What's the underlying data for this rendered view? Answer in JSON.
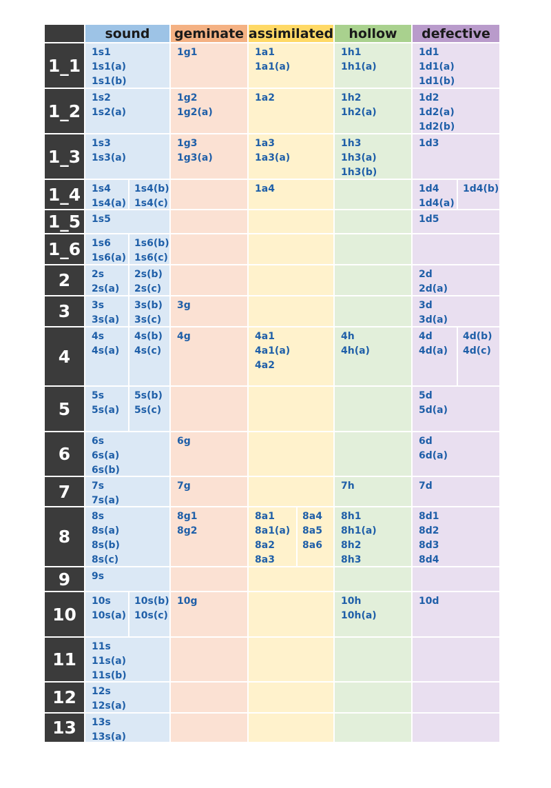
{
  "header": {
    "columns": [
      "sound",
      "geminate",
      "assimilated",
      "hollow",
      "defective"
    ]
  },
  "rows": [
    {
      "label": "1_1",
      "cells": [
        [
          [
            "1s1",
            "1s1(a)",
            "1s1(b)"
          ]
        ],
        [
          [
            "1g1"
          ]
        ],
        [
          [
            "1a1",
            "1a1(a)"
          ]
        ],
        [
          [
            "1h1",
            "1h1(a)"
          ]
        ],
        [
          [
            "1d1",
            "1d1(a)",
            "1d1(b)"
          ]
        ]
      ]
    },
    {
      "label": "1_2",
      "cells": [
        [
          [
            "1s2",
            "1s2(a)"
          ]
        ],
        [
          [
            "1g2",
            "1g2(a)"
          ]
        ],
        [
          [
            "1a2"
          ]
        ],
        [
          [
            "1h2",
            "1h2(a)"
          ]
        ],
        [
          [
            "1d2",
            "1d2(a)",
            "1d2(b)"
          ]
        ]
      ]
    },
    {
      "label": "1_3",
      "cells": [
        [
          [
            "1s3",
            "1s3(a)"
          ]
        ],
        [
          [
            "1g3",
            "1g3(a)"
          ]
        ],
        [
          [
            "1a3",
            "1a3(a)"
          ]
        ],
        [
          [
            "1h3",
            "1h3(a)",
            "1h3(b)"
          ]
        ],
        [
          [
            "1d3"
          ]
        ]
      ]
    },
    {
      "label": "1_4",
      "cells": [
        [
          [
            "1s4",
            "1s4(a)"
          ],
          [
            "1s4(b)",
            "1s4(c)"
          ]
        ],
        [],
        [
          [
            "1a4"
          ]
        ],
        [],
        [
          [
            "1d4",
            "1d4(a)"
          ],
          [
            "1d4(b)"
          ]
        ]
      ]
    },
    {
      "label": "1_5",
      "cells": [
        [
          [
            "1s5"
          ]
        ],
        [],
        [],
        [],
        [
          [
            "1d5"
          ]
        ]
      ]
    },
    {
      "label": "1_6",
      "cells": [
        [
          [
            "1s6",
            "1s6(a)"
          ],
          [
            "1s6(b)",
            "1s6(c)"
          ]
        ],
        [],
        [],
        [],
        []
      ]
    },
    {
      "label": "2",
      "cells": [
        [
          [
            "2s",
            "2s(a)"
          ],
          [
            "2s(b)",
            "2s(c)"
          ]
        ],
        [],
        [],
        [],
        [
          [
            "2d",
            "2d(a)"
          ]
        ]
      ]
    },
    {
      "label": "3",
      "cells": [
        [
          [
            "3s",
            "3s(a)"
          ],
          [
            "3s(b)",
            "3s(c)"
          ]
        ],
        [
          [
            "3g"
          ]
        ],
        [],
        [],
        [
          [
            "3d",
            "3d(a)"
          ]
        ]
      ]
    },
    {
      "label": "4",
      "cells": [
        [
          [
            "4s",
            "4s(a)"
          ],
          [
            "4s(b)",
            "4s(c)"
          ]
        ],
        [
          [
            "4g"
          ]
        ],
        [
          [
            "4a1",
            "4a1(a)",
            "4a2"
          ]
        ],
        [
          [
            "4h",
            "4h(a)"
          ]
        ],
        [
          [
            "4d",
            "4d(a)"
          ],
          [
            "4d(b)",
            "4d(c)"
          ]
        ]
      ]
    },
    {
      "label": "5",
      "cells": [
        [
          [
            "5s",
            "5s(a)"
          ],
          [
            "5s(b)",
            "5s(c)"
          ]
        ],
        [],
        [],
        [],
        [
          [
            "5d",
            "5d(a)"
          ]
        ]
      ]
    },
    {
      "label": "6",
      "cells": [
        [
          [
            "6s",
            "6s(a)",
            "6s(b)"
          ]
        ],
        [
          [
            "6g"
          ]
        ],
        [],
        [],
        [
          [
            "6d",
            "6d(a)"
          ]
        ]
      ]
    },
    {
      "label": "7",
      "cells": [
        [
          [
            "7s",
            "7s(a)"
          ]
        ],
        [
          [
            "7g"
          ]
        ],
        [],
        [
          [
            "7h"
          ]
        ],
        [
          [
            "7d"
          ]
        ]
      ]
    },
    {
      "label": "8",
      "cells": [
        [
          [
            "8s",
            "8s(a)",
            "8s(b)",
            "8s(c)"
          ]
        ],
        [
          [
            "8g1",
            "8g2"
          ]
        ],
        [
          [
            "8a1",
            "8a1(a)",
            "8a2",
            "8a3"
          ],
          [
            "8a4",
            "8a5",
            "8a6"
          ]
        ],
        [
          [
            "8h1",
            "8h1(a)",
            "8h2",
            "8h3"
          ]
        ],
        [
          [
            "8d1",
            "8d2",
            "8d3",
            "8d4"
          ]
        ]
      ]
    },
    {
      "label": "9",
      "cells": [
        [
          [
            "9s"
          ]
        ],
        [],
        [],
        [],
        []
      ]
    },
    {
      "label": "10",
      "cells": [
        [
          [
            "10s",
            "10s(a)"
          ],
          [
            "10s(b)",
            "10s(c)"
          ]
        ],
        [
          [
            "10g"
          ]
        ],
        [],
        [
          [
            "10h",
            "10h(a)"
          ]
        ],
        [
          [
            "10d"
          ]
        ]
      ]
    },
    {
      "label": "11",
      "cells": [
        [
          [
            "11s",
            "11s(a)",
            "11s(b)"
          ]
        ],
        [],
        [],
        [],
        []
      ]
    },
    {
      "label": "12",
      "cells": [
        [
          [
            "12s",
            "12s(a)"
          ]
        ],
        [],
        [],
        [],
        []
      ]
    },
    {
      "label": "13",
      "cells": [
        [
          [
            "13s",
            "13s(a)"
          ]
        ],
        [],
        [],
        [],
        []
      ]
    }
  ]
}
